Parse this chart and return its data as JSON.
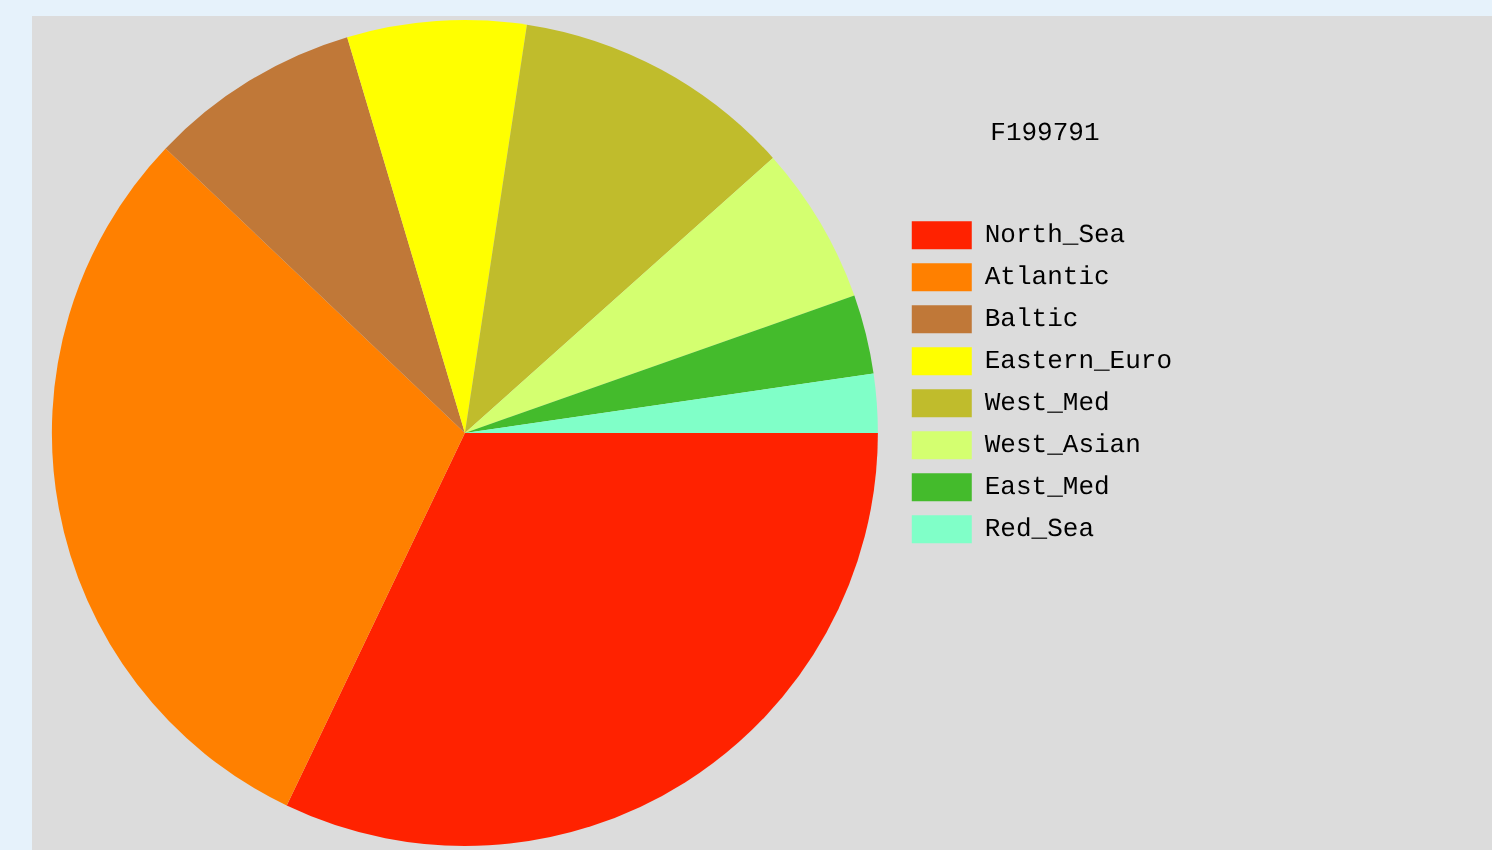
{
  "chart_data": {
    "type": "pie",
    "title": "F199791",
    "categories": [
      "North_Sea",
      "Atlantic",
      "Baltic",
      "Eastern_Euro",
      "West_Med",
      "West_Asian",
      "East_Med",
      "Red_Sea"
    ],
    "values": [
      32.1,
      30.0,
      8.3,
      7.0,
      11.0,
      6.2,
      3.1,
      2.3
    ],
    "colors": [
      "#ff2200",
      "#ff8000",
      "#c07838",
      "#ffff00",
      "#c0bc2c",
      "#d4ff70",
      "#44bb2c",
      "#80ffc8"
    ],
    "legend": "right"
  }
}
